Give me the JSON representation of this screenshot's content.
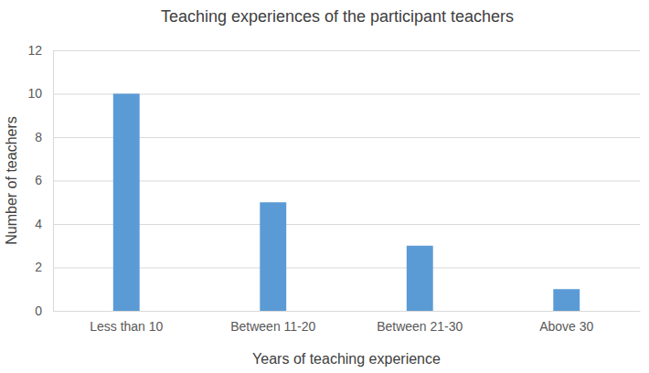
{
  "chart_data": {
    "type": "bar",
    "title": "Teaching experiences of the participant teachers",
    "x_label": "Years of teaching experience",
    "y_label": "Number of teachers",
    "categories": [
      "Less than 10",
      "Between 11-20",
      "Between 21-30",
      "Above 30"
    ],
    "values": [
      10,
      5,
      3,
      1
    ],
    "color": "#5b9bd5",
    "ylim": [
      0,
      12
    ],
    "yticks": [
      0,
      2,
      4,
      6,
      8,
      10,
      12
    ],
    "grid": true
  }
}
